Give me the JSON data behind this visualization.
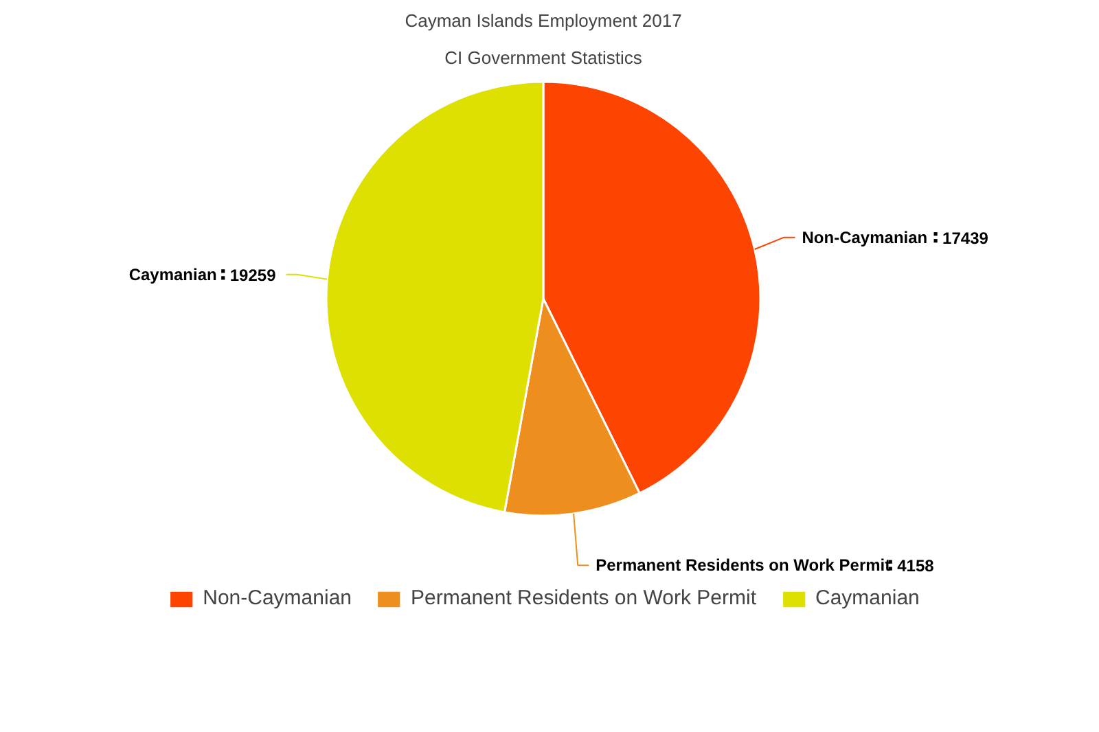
{
  "chart_data": {
    "type": "pie",
    "title": "Cayman Islands Employment 2017",
    "subtitle": "CI Government Statistics",
    "categories": [
      "Non-Caymanian",
      "Permanent Residents on Work Permit",
      "Caymanian"
    ],
    "values": [
      17439,
      4158,
      19259
    ],
    "colors": [
      "#fd4400",
      "#ee8e1e",
      "#dde000"
    ],
    "data_labels": true,
    "legend": "bottom"
  }
}
